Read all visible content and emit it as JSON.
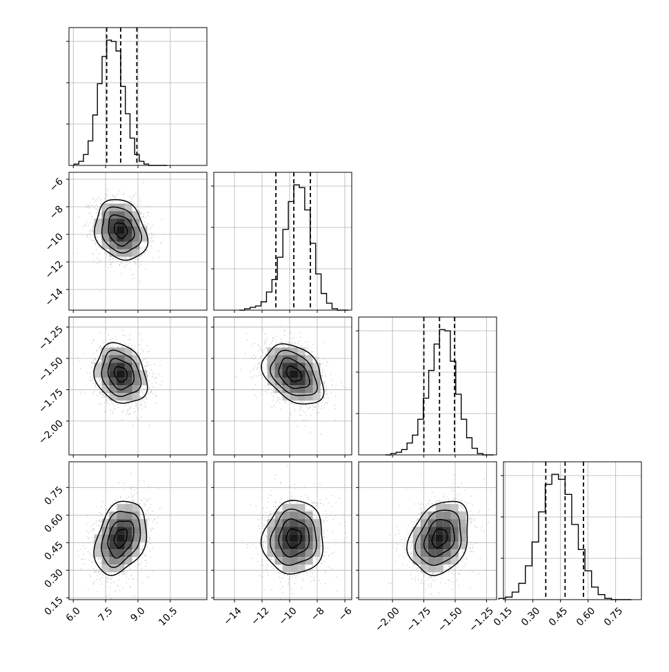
{
  "chart_data": {
    "type": "corner",
    "title": "",
    "grid": true,
    "params": [
      {
        "range": [
          5.8,
          12.2
        ],
        "ticks": [
          "6.0",
          "7.5",
          "9.0",
          "10.5"
        ],
        "tick_values": [
          6.0,
          7.5,
          9.0,
          10.5
        ],
        "quantiles": [
          7.55,
          8.2,
          8.95
        ],
        "mean": 8.2,
        "sd": 0.6
      },
      {
        "range": [
          -15.5,
          -5.5
        ],
        "ticks": [
          "−14",
          "−12",
          "−10",
          "−8",
          "−6"
        ],
        "tick_values": [
          -14,
          -12,
          -10,
          -8,
          -6
        ],
        "quantiles": [
          -11.0,
          -9.7,
          -8.5
        ],
        "mean": -9.7,
        "sd": 1.1
      },
      {
        "range": [
          -2.27,
          -1.17
        ],
        "ticks": [
          "−2.00",
          "−1.75",
          "−1.50",
          "−1.25"
        ],
        "tick_values": [
          -2.0,
          -1.75,
          -1.5,
          -1.25
        ],
        "quantiles": [
          -1.75,
          -1.625,
          -1.505
        ],
        "mean": -1.625,
        "sd": 0.12
      },
      {
        "range": [
          0.14,
          0.89
        ],
        "ticks": [
          "0.15",
          "0.30",
          "0.45",
          "0.60",
          "0.75"
        ],
        "tick_values": [
          0.15,
          0.3,
          0.45,
          0.6,
          0.75
        ],
        "quantiles": [
          0.37,
          0.475,
          0.575
        ],
        "mean": 0.475,
        "sd": 0.1
      }
    ],
    "histograms": [
      {
        "param": 0,
        "counts": [
          1,
          3,
          8,
          18,
          37,
          60,
          80,
          92,
          91,
          84,
          58,
          38,
          20,
          8,
          3,
          1,
          0,
          0,
          0,
          0
        ]
      },
      {
        "param": 1,
        "counts": [
          0,
          1,
          2,
          3,
          6,
          13,
          22,
          38,
          58,
          78,
          90,
          88,
          72,
          48,
          26,
          12,
          5,
          1,
          0,
          0
        ]
      },
      {
        "param": 2,
        "counts": [
          0,
          1,
          2,
          4,
          9,
          15,
          27,
          43,
          64,
          84,
          95,
          94,
          71,
          46,
          27,
          13,
          5,
          1,
          0,
          0
        ]
      },
      {
        "param": 3,
        "counts": [
          1,
          2,
          6,
          13,
          27,
          46,
          70,
          92,
          100,
          96,
          84,
          60,
          40,
          23,
          10,
          4,
          1,
          0,
          0,
          0
        ]
      }
    ],
    "pairs": [
      {
        "x": 0,
        "y": 1,
        "correlation": -0.2
      },
      {
        "x": 0,
        "y": 2,
        "correlation": -0.2
      },
      {
        "x": 1,
        "y": 2,
        "correlation": -0.35
      },
      {
        "x": 0,
        "y": 3,
        "correlation": 0.3
      },
      {
        "x": 1,
        "y": 3,
        "correlation": 0.05
      },
      {
        "x": 2,
        "y": 3,
        "correlation": 0.25
      }
    ]
  },
  "colors": {
    "frame": "#000000",
    "grid": "#b0b0b0",
    "points": "#9a9a9a",
    "contour": "#000000"
  }
}
